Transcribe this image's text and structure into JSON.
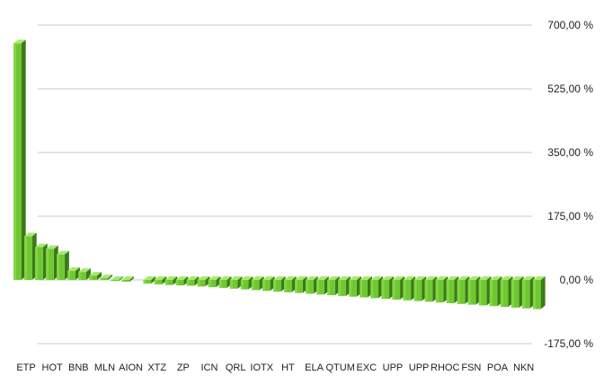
{
  "chart_data": {
    "type": "bar",
    "style": "3d",
    "grid": true,
    "ylim": [
      -175,
      700
    ],
    "yticks": [
      "700,00 %",
      "525,00 %",
      "350,00 %",
      "175,00 %",
      "0,00 %",
      "-175,00 %"
    ],
    "ytick_values": [
      700,
      525,
      350,
      175,
      0,
      -175
    ],
    "shown_category_labels": [
      "ETP",
      "HOT",
      "BNB",
      "MLN",
      "AION",
      "XTZ",
      "ZP",
      "ICN",
      "QRL",
      "IOTX",
      "HT",
      "ELA",
      "QTUM",
      "EXC",
      "UPP",
      "UPP",
      "RHOC",
      "FSN",
      "POA",
      "NKN"
    ],
    "values": [
      650,
      120,
      90,
      85,
      70,
      25,
      22,
      12,
      5,
      -3,
      -5,
      0,
      -10,
      -12,
      -14,
      -15,
      -16,
      -18,
      -20,
      -22,
      -24,
      -26,
      -28,
      -30,
      -32,
      -34,
      -36,
      -38,
      -40,
      -42,
      -44,
      -46,
      -48,
      -50,
      -52,
      -54,
      -56,
      -58,
      -60,
      -62,
      -64,
      -66,
      -68,
      -70,
      -72,
      -74,
      -76,
      -78,
      -80
    ],
    "colors": {
      "bar_front": "#6fc832",
      "bar_front_light": "#8fe04c",
      "bar_side": "#3d7a19",
      "bar_top": "#a6ea6e",
      "grid": "#c8c8c8"
    }
  }
}
